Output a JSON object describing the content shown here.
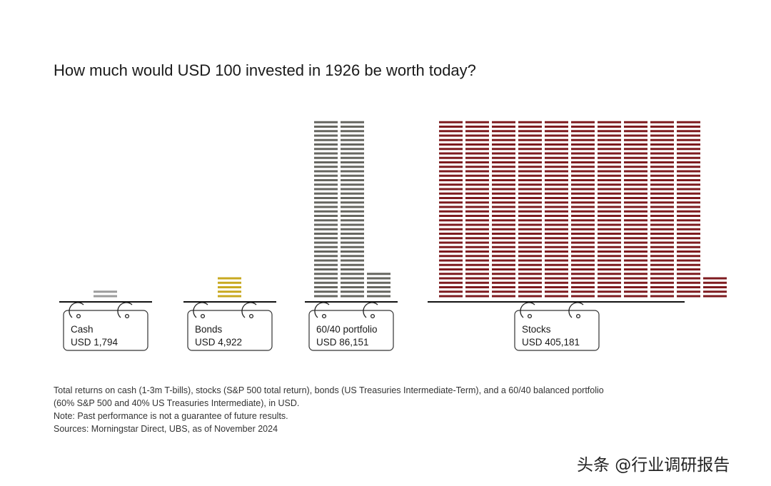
{
  "title": "How much would USD 100 invested in 1926 be worth today?",
  "chart_data": {
    "type": "bar",
    "style": "stacked-bill-icons",
    "categories": [
      "Cash",
      "Bonds",
      "60/40 portfolio",
      "Stocks"
    ],
    "values": [
      1794,
      4922,
      86151,
      405181
    ],
    "value_labels": [
      "USD 1,794",
      "USD 4,922",
      "USD 86,151",
      "USD 405,181"
    ],
    "units_per_bill": 1000,
    "colors": [
      "#9c9c9c",
      "#c8a920",
      "#666660",
      "#7e1b1f"
    ],
    "title": "How much would USD 100 invested in 1926 be worth today?"
  },
  "notes": [
    "Total returns on cash (1-3m T-bills), stocks (S&P 500 total return), bonds (US Treasuries Intermediate-Term), and a 60/40 balanced portfolio",
    "(60% S&P 500 and 40% US Treasuries Intermediate), in USD.",
    "Note: Past performance is not a guarantee of future results.",
    "Sources: Morningstar Direct, UBS, as of November 2024"
  ],
  "watermark": "头条 @行业调研报告"
}
